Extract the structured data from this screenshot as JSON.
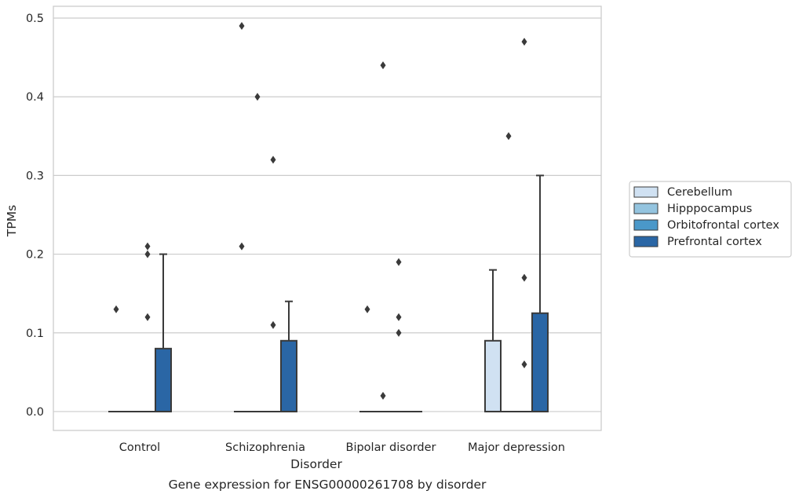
{
  "chart_data": {
    "type": "box",
    "caption": "Gene expression for ENSG00000261708 by disorder",
    "xlabel": "Disorder",
    "ylabel": "TPMs",
    "ylim": [
      -0.024,
      0.515
    ],
    "yticks": [
      0.0,
      0.1,
      0.2,
      0.3,
      0.4,
      0.5
    ],
    "ytick_labels": [
      "0.0",
      "0.1",
      "0.2",
      "0.3",
      "0.4",
      "0.5"
    ],
    "grid": true,
    "legend_position": "right",
    "categories": [
      "Control",
      "Schizophrenia",
      "Bipolar disorder",
      "Major depression"
    ],
    "series": [
      {
        "name": "Cerebellum",
        "color": "#d0e1f2",
        "boxes": [
          {
            "q1": 0.0,
            "median": 0.0,
            "q3": 0.0,
            "whisker_low": 0.0,
            "whisker_high": 0.0,
            "outliers": [
              0.13
            ]
          },
          {
            "q1": 0.0,
            "median": 0.0,
            "q3": 0.0,
            "whisker_low": 0.0,
            "whisker_high": 0.0,
            "outliers": [
              0.49,
              0.21
            ]
          },
          {
            "q1": 0.0,
            "median": 0.0,
            "q3": 0.0,
            "whisker_low": 0.0,
            "whisker_high": 0.0,
            "outliers": [
              0.13
            ]
          },
          {
            "q1": 0.0,
            "median": 0.0,
            "q3": 0.09,
            "whisker_low": 0.0,
            "whisker_high": 0.18,
            "outliers": []
          }
        ]
      },
      {
        "name": "Hipppocampus",
        "color": "#94c4df",
        "boxes": [
          {
            "q1": 0.0,
            "median": 0.0,
            "q3": 0.0,
            "whisker_low": 0.0,
            "whisker_high": 0.0,
            "outliers": []
          },
          {
            "q1": 0.0,
            "median": 0.0,
            "q3": 0.0,
            "whisker_low": 0.0,
            "whisker_high": 0.0,
            "outliers": [
              0.4
            ]
          },
          {
            "q1": 0.0,
            "median": 0.0,
            "q3": 0.0,
            "whisker_low": 0.0,
            "whisker_high": 0.0,
            "outliers": [
              0.44,
              0.02
            ]
          },
          {
            "q1": 0.0,
            "median": 0.0,
            "q3": 0.0,
            "whisker_low": 0.0,
            "whisker_high": 0.0,
            "outliers": [
              0.35
            ]
          }
        ]
      },
      {
        "name": "Orbitofrontal cortex",
        "color": "#4a98c9",
        "boxes": [
          {
            "q1": 0.0,
            "median": 0.0,
            "q3": 0.0,
            "whisker_low": 0.0,
            "whisker_high": 0.0,
            "outliers": [
              0.21,
              0.2,
              0.12
            ]
          },
          {
            "q1": 0.0,
            "median": 0.0,
            "q3": 0.0,
            "whisker_low": 0.0,
            "whisker_high": 0.0,
            "outliers": [
              0.32,
              0.11
            ]
          },
          {
            "q1": 0.0,
            "median": 0.0,
            "q3": 0.0,
            "whisker_low": 0.0,
            "whisker_high": 0.0,
            "outliers": [
              0.19,
              0.12,
              0.1
            ]
          },
          {
            "q1": 0.0,
            "median": 0.0,
            "q3": 0.0,
            "whisker_low": 0.0,
            "whisker_high": 0.0,
            "outliers": [
              0.47,
              0.17,
              0.06
            ]
          }
        ]
      },
      {
        "name": "Prefrontal cortex",
        "color": "#2a66a5",
        "boxes": [
          {
            "q1": 0.0,
            "median": 0.0,
            "q3": 0.08,
            "whisker_low": 0.0,
            "whisker_high": 0.2,
            "outliers": []
          },
          {
            "q1": 0.0,
            "median": 0.0,
            "q3": 0.09,
            "whisker_low": 0.0,
            "whisker_high": 0.14,
            "outliers": []
          },
          {
            "q1": 0.0,
            "median": 0.0,
            "q3": 0.0,
            "whisker_low": 0.0,
            "whisker_high": 0.0,
            "outliers": []
          },
          {
            "q1": 0.0,
            "median": 0.0,
            "q3": 0.125,
            "whisker_low": 0.0,
            "whisker_high": 0.3,
            "outliers": []
          }
        ]
      }
    ]
  }
}
